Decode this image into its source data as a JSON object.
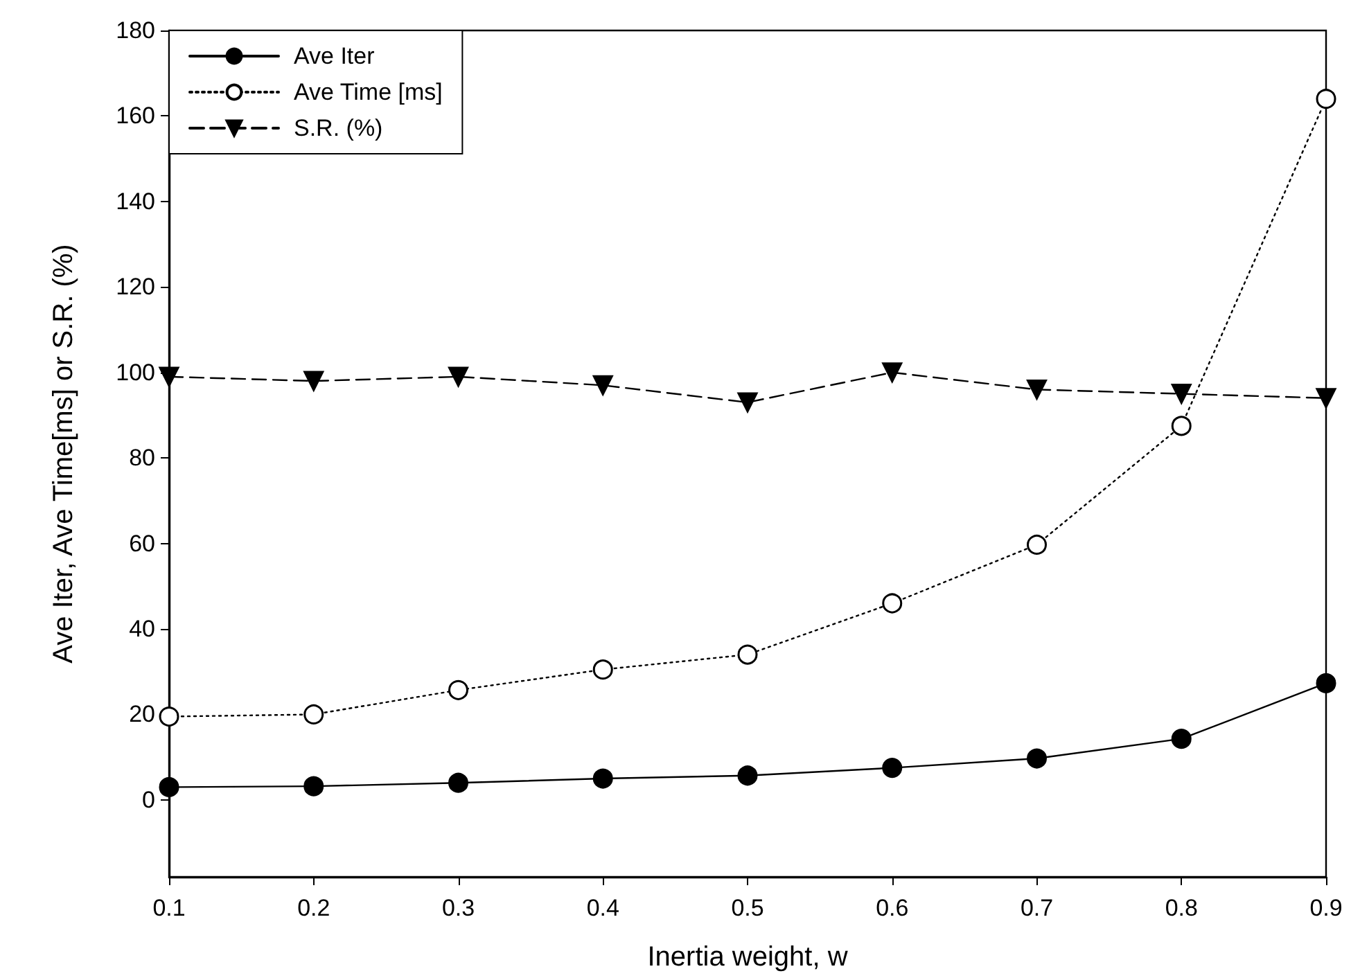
{
  "chart_data": {
    "type": "line",
    "xlabel": "Inertia weight, w",
    "ylabel": "Ave Iter, Ave Time[ms] or S.R. (%)",
    "x": [
      0.1,
      0.2,
      0.3,
      0.4,
      0.5,
      0.6,
      0.7,
      0.8,
      0.9
    ],
    "series": [
      {
        "name": "Ave Iter",
        "color": "#000000",
        "marker": "circle",
        "line_style": "solid",
        "values": [
          3,
          3.2,
          4,
          5,
          5.7,
          7.5,
          9.7,
          14.3,
          27.3
        ]
      },
      {
        "name": "Ave Time [ms]",
        "color": "#000000",
        "marker": "circle",
        "line_style": "dotted",
        "values": [
          19.5,
          20,
          25.7,
          30.5,
          34,
          46,
          59.7,
          87.5,
          164
        ]
      },
      {
        "name": "S.R. (%)",
        "color": "#000000",
        "marker": "triangle-down",
        "line_style": "dashed",
        "values": [
          99,
          98,
          99,
          97,
          93,
          100,
          96,
          95,
          94
        ]
      }
    ],
    "xlim": [
      0.1,
      0.9
    ],
    "xticks": [
      0.1,
      0.2,
      0.3,
      0.4,
      0.5,
      0.6,
      0.7,
      0.8,
      0.9
    ],
    "ylim": [
      -18,
      180
    ],
    "yticks": [
      0,
      20,
      40,
      60,
      80,
      100,
      120,
      140,
      160,
      180
    ],
    "grid": false,
    "legend": "top left"
  }
}
